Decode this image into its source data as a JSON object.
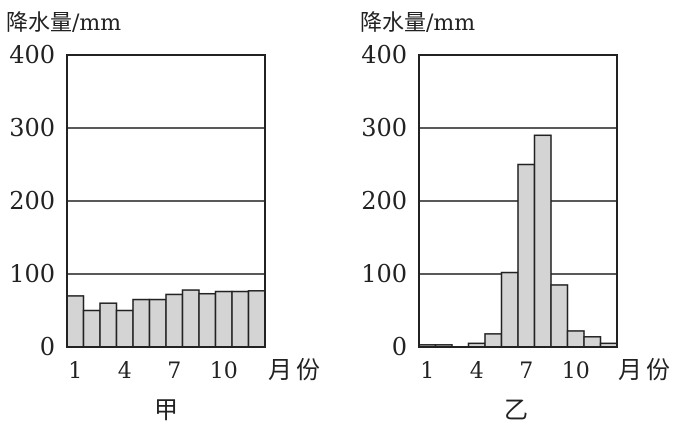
{
  "chart_data": [
    {
      "type": "bar",
      "title": "甲",
      "ylabel": "降水量/mm",
      "xlabel": "月份",
      "ylim": [
        0,
        400
      ],
      "yticks": [
        0,
        100,
        200,
        300,
        400
      ],
      "ytick_labels": [
        "0",
        "100",
        "200",
        "300",
        "400"
      ],
      "xtick_labels": [
        "1",
        "4",
        "7",
        "10"
      ],
      "categories": [
        "1",
        "2",
        "3",
        "4",
        "5",
        "6",
        "7",
        "8",
        "9",
        "10",
        "11",
        "12"
      ],
      "values": [
        70,
        50,
        60,
        50,
        65,
        65,
        72,
        78,
        73,
        76,
        76,
        77
      ],
      "grid": true,
      "bar_color": "#d4d4d4"
    },
    {
      "type": "bar",
      "title": "乙",
      "ylabel": "降水量/mm",
      "xlabel": "月份",
      "ylim": [
        0,
        400
      ],
      "yticks": [
        0,
        100,
        200,
        300,
        400
      ],
      "ytick_labels": [
        "0",
        "100",
        "200",
        "300",
        "400"
      ],
      "xtick_labels": [
        "1",
        "4",
        "7",
        "10"
      ],
      "categories": [
        "1",
        "2",
        "3",
        "4",
        "5",
        "6",
        "7",
        "8",
        "9",
        "10",
        "11",
        "12"
      ],
      "values": [
        3,
        3,
        0,
        5,
        18,
        102,
        250,
        290,
        85,
        22,
        14,
        5
      ],
      "grid": true,
      "bar_color": "#d4d4d4"
    }
  ]
}
